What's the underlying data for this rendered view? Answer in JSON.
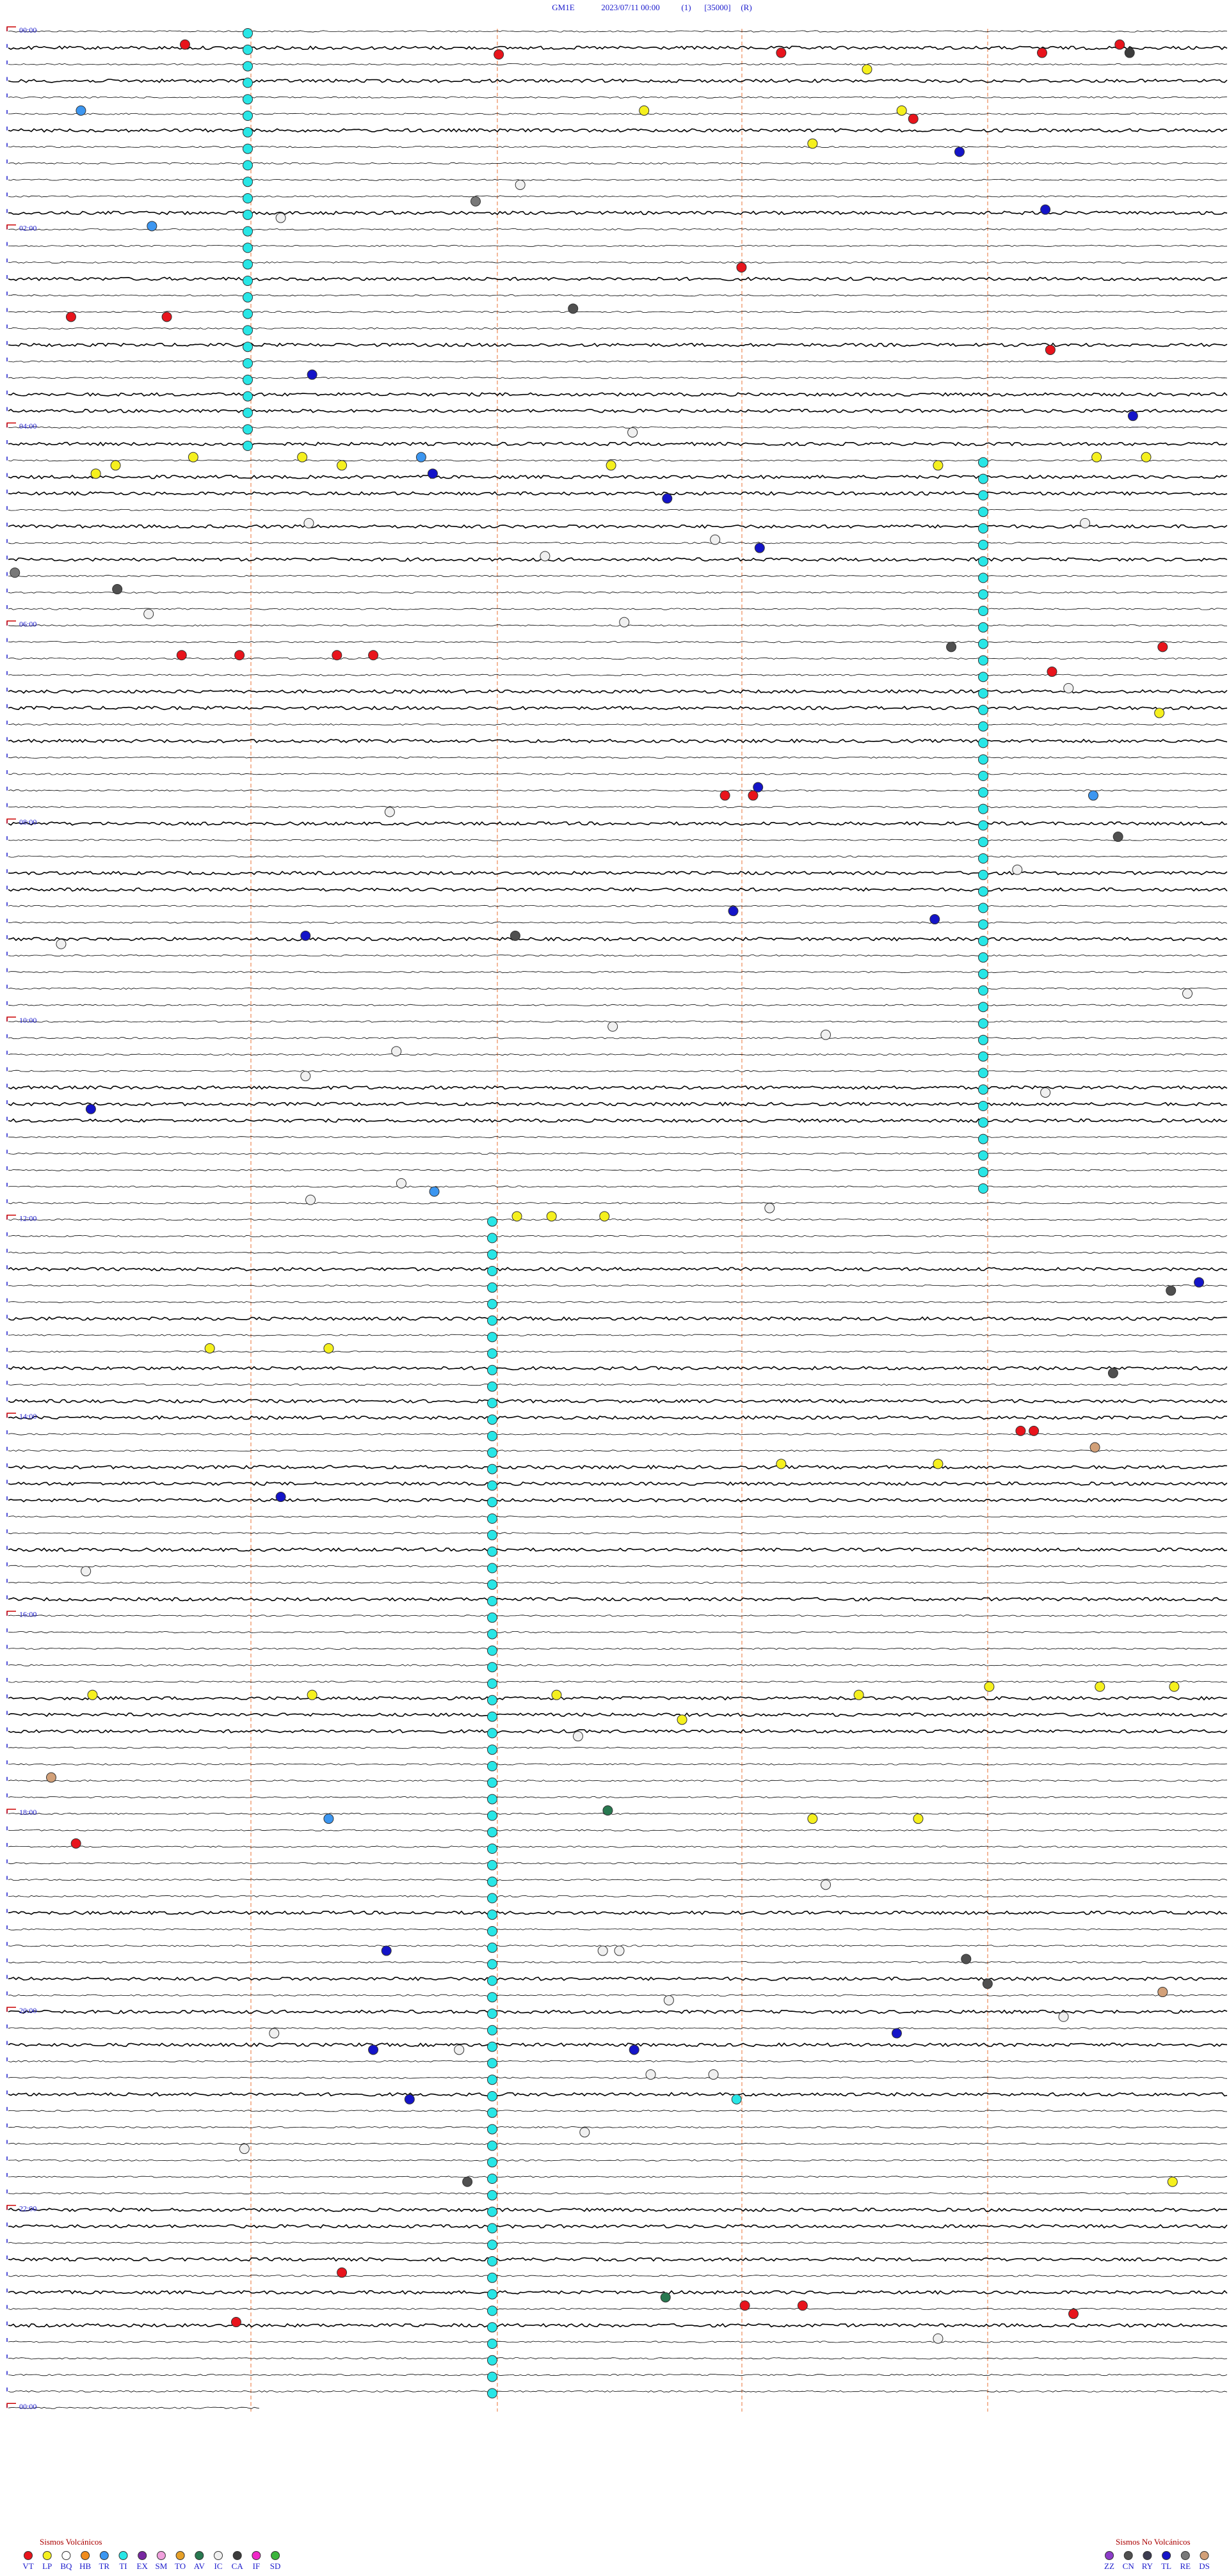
{
  "header": {
    "station": "GM1E",
    "datetime": "2023/07/11 00:00",
    "channel": "(1)",
    "scale": "[35000]",
    "mode": "(R)"
  },
  "hours": [
    "00:00",
    "02:00",
    "04:00",
    "06:00",
    "08:00",
    "10:00",
    "12:00",
    "14:00",
    "16:00",
    "18:00",
    "20:00",
    "22:00",
    "00:00"
  ],
  "legend": {
    "volcanic": {
      "title": "Sismos Volcánicos",
      "items": [
        {
          "label": "VT",
          "color": "#e8141c"
        },
        {
          "label": "LP",
          "color": "#f5f01e"
        },
        {
          "label": "BQ",
          "color": "#ffffff"
        },
        {
          "label": "HB",
          "color": "#f08c1e"
        },
        {
          "label": "TR",
          "color": "#3c96f0"
        },
        {
          "label": "TI",
          "color": "#28e6e6"
        },
        {
          "label": "EX",
          "color": "#7828a0"
        },
        {
          "label": "SM",
          "color": "#f0a0dc"
        },
        {
          "label": "TO",
          "color": "#e6a028"
        },
        {
          "label": "AV",
          "color": "#287850"
        },
        {
          "label": "IC",
          "color": "#f0f0f0"
        },
        {
          "label": "CA",
          "color": "#3c3c3c"
        },
        {
          "label": "IF",
          "color": "#f028c8"
        },
        {
          "label": "SD",
          "color": "#3cb43c"
        }
      ]
    },
    "non_volcanic": {
      "title": "Sismos No Volcánicos",
      "items": [
        {
          "label": "ZZ",
          "color": "#8c3cc8"
        },
        {
          "label": "CN",
          "color": "#505050"
        },
        {
          "label": "RY",
          "color": "#3c3c50"
        },
        {
          "label": "TL",
          "color": "#1414c8"
        },
        {
          "label": "RE",
          "color": "#787878"
        },
        {
          "label": "DS",
          "color": "#d2a078"
        }
      ]
    }
  }
}
